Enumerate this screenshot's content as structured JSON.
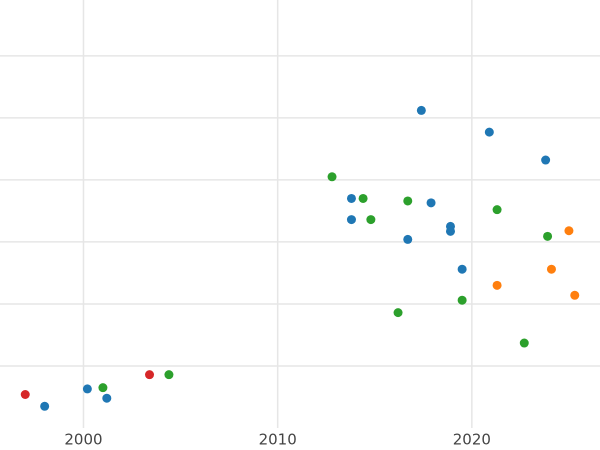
{
  "chart_data": {
    "type": "scatter",
    "title": "",
    "xlabel": "",
    "ylabel": "",
    "grid": true,
    "legend": "none",
    "xlim": [
      1995.7,
      2026.6
    ],
    "ylim": [
      0,
      6.9
    ],
    "x_ticks": [
      2000,
      2010,
      2020
    ],
    "x_tick_labels": [
      "2000",
      "2010",
      "2020"
    ],
    "y_gridlines": [
      1,
      2,
      3,
      4,
      5,
      6
    ],
    "series": [
      {
        "color": "#1f77b4",
        "points": [
          [
            1998.0,
            0.35
          ],
          [
            2000.2,
            0.63
          ],
          [
            2001.2,
            0.48
          ],
          [
            2013.8,
            3.7
          ],
          [
            2013.8,
            3.36
          ],
          [
            2016.7,
            3.04
          ],
          [
            2017.4,
            5.12
          ],
          [
            2017.9,
            3.63
          ],
          [
            2018.9,
            3.25
          ],
          [
            2018.9,
            3.17
          ],
          [
            2019.5,
            2.56
          ],
          [
            2020.9,
            4.77
          ],
          [
            2023.8,
            4.32
          ]
        ]
      },
      {
        "color": "#2ca02c",
        "points": [
          [
            2001.0,
            0.65
          ],
          [
            2004.4,
            0.86
          ],
          [
            2012.8,
            4.05
          ],
          [
            2014.4,
            3.7
          ],
          [
            2014.8,
            3.36
          ],
          [
            2016.2,
            1.86
          ],
          [
            2016.7,
            3.66
          ],
          [
            2019.5,
            2.06
          ],
          [
            2021.3,
            3.52
          ],
          [
            2022.7,
            1.37
          ],
          [
            2023.9,
            3.09
          ]
        ]
      },
      {
        "color": "#ff7f0e",
        "points": [
          [
            2021.3,
            2.3
          ],
          [
            2024.1,
            2.56
          ],
          [
            2025.0,
            3.18
          ],
          [
            2025.3,
            2.14
          ]
        ]
      },
      {
        "color": "#d62728",
        "points": [
          [
            1997.0,
            0.54
          ],
          [
            2003.4,
            0.86
          ]
        ]
      }
    ]
  }
}
